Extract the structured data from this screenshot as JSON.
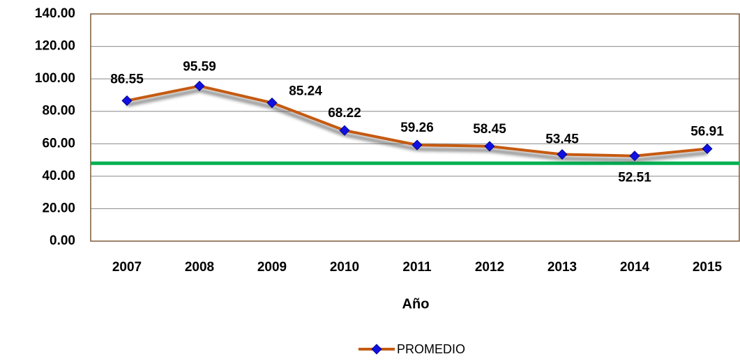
{
  "chart_data": {
    "type": "line",
    "x_label": "Año",
    "categories": [
      "2007",
      "2008",
      "2009",
      "2010",
      "2011",
      "2012",
      "2013",
      "2014",
      "2015"
    ],
    "series": [
      {
        "name": "PROMEDIO",
        "color": "#c55a11",
        "marker_color": "#1010e0",
        "values": [
          86.55,
          95.59,
          85.24,
          68.22,
          59.26,
          58.45,
          53.45,
          52.51,
          56.91
        ]
      }
    ],
    "reference_line": {
      "value": 48,
      "color": "#00b050"
    },
    "ylim": [
      0,
      140
    ],
    "yticks": [
      {
        "value": 0,
        "label": "0.00"
      },
      {
        "value": 20,
        "label": "20.00"
      },
      {
        "value": 40,
        "label": "40.00"
      },
      {
        "value": 60,
        "label": "60.00"
      },
      {
        "value": 80,
        "label": "80.00"
      },
      {
        "value": 100,
        "label": "100.00"
      },
      {
        "value": 120,
        "label": "120.00"
      },
      {
        "value": 140,
        "label": "140.00"
      }
    ],
    "grid": true,
    "legend": "bottom"
  }
}
